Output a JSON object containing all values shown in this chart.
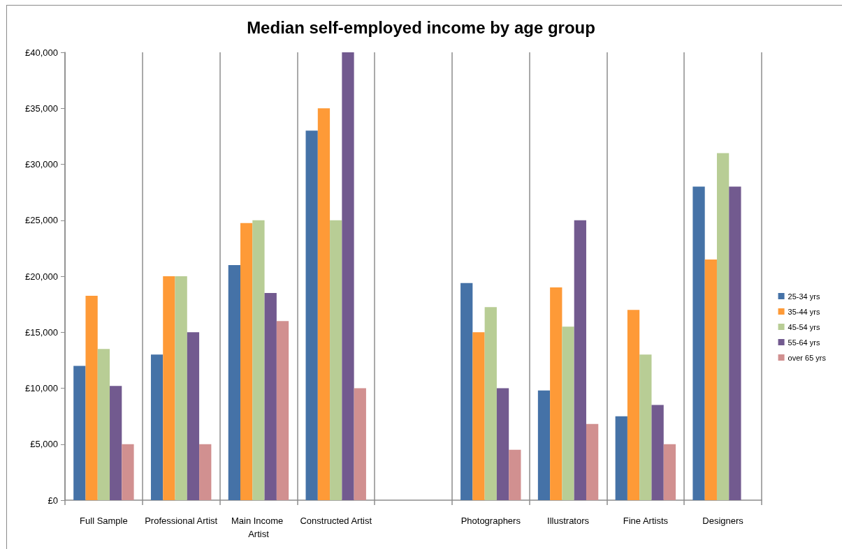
{
  "chart_data": {
    "type": "bar",
    "title": "Median self-employed income by age group",
    "categories": [
      "Full Sample",
      "Professional Artist",
      "Main Income Artist",
      "Constructed Artist",
      null,
      "Photographers",
      "Illustrators",
      "Fine Artists",
      "Designers"
    ],
    "series": [
      {
        "name": "25-34 yrs",
        "color": "#4572a7",
        "values": [
          12000,
          13000,
          21000,
          33000,
          null,
          19400,
          9800,
          7500,
          28000
        ]
      },
      {
        "name": "35-44 yrs",
        "color": "#fe9a37",
        "values": [
          18250,
          20000,
          24750,
          35000,
          null,
          15000,
          19000,
          17000,
          21500
        ]
      },
      {
        "name": "45-54 yrs",
        "color": "#b8cd95",
        "values": [
          13500,
          20000,
          25000,
          25000,
          null,
          17250,
          15500,
          13000,
          31000
        ]
      },
      {
        "name": "55-64 yrs",
        "color": "#725a8f",
        "values": [
          10200,
          15000,
          18500,
          40000,
          null,
          10000,
          25000,
          8500,
          28000
        ]
      },
      {
        "name": "over 65 yrs",
        "color": "#d19090",
        "values": [
          5000,
          5000,
          16000,
          10000,
          null,
          4500,
          6800,
          5000,
          null
        ]
      }
    ],
    "ylim": [
      0,
      40000
    ],
    "yticks": [
      {
        "value": 0,
        "label": "£0"
      },
      {
        "value": 5000,
        "label": "£5,000"
      },
      {
        "value": 10000,
        "label": "£10,000"
      },
      {
        "value": 15000,
        "label": "£15,000"
      },
      {
        "value": 20000,
        "label": "£20,000"
      },
      {
        "value": 25000,
        "label": "£25,000"
      },
      {
        "value": 30000,
        "label": "£30,000"
      },
      {
        "value": 35000,
        "label": "£35,000"
      },
      {
        "value": 40000,
        "label": "£40,000"
      }
    ],
    "grid": "x",
    "legend": "right"
  }
}
